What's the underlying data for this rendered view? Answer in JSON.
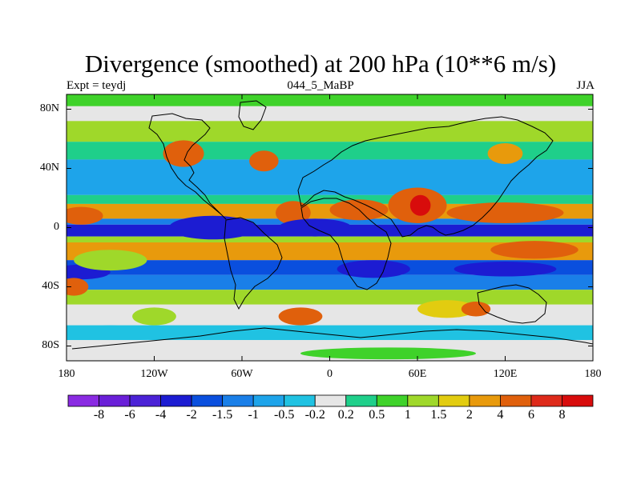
{
  "chart_data": {
    "type": "heatmap",
    "title": "Divergence (smoothed) at 200 hPa (10**6 m/s)",
    "subtitle_left": "Expt = teydj",
    "subtitle_center": "044_5_MaBP",
    "subtitle_right": "JJA",
    "xlabel": "",
    "ylabel": "",
    "xlim": [
      -180,
      180
    ],
    "ylim": [
      -90,
      90
    ],
    "x_ticks": [
      {
        "value": -180,
        "label": "180"
      },
      {
        "value": -120,
        "label": "120W"
      },
      {
        "value": -60,
        "label": "60W"
      },
      {
        "value": 0,
        "label": "0"
      },
      {
        "value": 60,
        "label": "60E"
      },
      {
        "value": 120,
        "label": "120E"
      },
      {
        "value": 180,
        "label": "180"
      }
    ],
    "y_ticks": [
      {
        "value": 80,
        "label": "80N"
      },
      {
        "value": 40,
        "label": "40N"
      },
      {
        "value": 0,
        "label": "0"
      },
      {
        "value": -40,
        "label": "40S"
      },
      {
        "value": -80,
        "label": "80S"
      }
    ],
    "colorbar": {
      "labels": [
        "-8",
        "-6",
        "-4",
        "-2",
        "-1.5",
        "-1",
        "-0.5",
        "-0.2",
        "0.2",
        "0.5",
        "1",
        "1.5",
        "2",
        "4",
        "6",
        "8"
      ],
      "colors": [
        "#8a2be2",
        "#6a1fd8",
        "#4b22d6",
        "#1c1cd2",
        "#0a4fde",
        "#1a7fe8",
        "#1ea4ea",
        "#20c2e2",
        "#e6e6e6",
        "#1fcf8a",
        "#3fd22a",
        "#9fd82a",
        "#e2cc10",
        "#e89a0c",
        "#e0600c",
        "#de2a1a",
        "#d80c0c"
      ]
    },
    "bands": [
      {
        "lat_min": 82,
        "lat_max": 90,
        "value": 0.5
      },
      {
        "lat_min": 72,
        "lat_max": 82,
        "value": 0
      },
      {
        "lat_min": 58,
        "lat_max": 72,
        "value": 1
      },
      {
        "lat_min": 46,
        "lat_max": 58,
        "value": 0.3
      },
      {
        "lat_min": 30,
        "lat_max": 46,
        "value": -0.6
      },
      {
        "lat_min": 22,
        "lat_max": 30,
        "value": -1
      },
      {
        "lat_min": 16,
        "lat_max": 22,
        "value": 0.3
      },
      {
        "lat_min": 6,
        "lat_max": 16,
        "value": 2
      },
      {
        "lat_min": 2,
        "lat_max": 6,
        "value": -1.5
      },
      {
        "lat_min": -6,
        "lat_max": 2,
        "value": -2.5
      },
      {
        "lat_min": -10,
        "lat_max": -6,
        "value": 1
      },
      {
        "lat_min": -22,
        "lat_max": -10,
        "value": 2
      },
      {
        "lat_min": -32,
        "lat_max": -22,
        "value": -1.8
      },
      {
        "lat_min": -42,
        "lat_max": -32,
        "value": -1.2
      },
      {
        "lat_min": -52,
        "lat_max": -42,
        "value": 1.2
      },
      {
        "lat_min": -66,
        "lat_max": -52,
        "value": 0
      },
      {
        "lat_min": -76,
        "lat_max": -66,
        "value": -0.5
      },
      {
        "lat_min": -90,
        "lat_max": -76,
        "value": 0
      }
    ],
    "blobs": [
      {
        "lon": 60,
        "lat": 15,
        "rlon": 20,
        "rlat": 12,
        "value": 4
      },
      {
        "lon": 62,
        "lat": 15,
        "rlon": 7,
        "rlat": 7,
        "value": 8
      },
      {
        "lon": 20,
        "lat": 12,
        "rlon": 20,
        "rlat": 7,
        "value": 4
      },
      {
        "lon": -25,
        "lat": 10,
        "rlon": 12,
        "rlat": 8,
        "value": 4
      },
      {
        "lon": -170,
        "lat": 8,
        "rlon": 15,
        "rlat": 6,
        "value": 4
      },
      {
        "lon": 120,
        "lat": 10,
        "rlon": 40,
        "rlat": 7,
        "value": 4
      },
      {
        "lon": -100,
        "lat": 50,
        "rlon": 14,
        "rlat": 9,
        "value": 4
      },
      {
        "lon": -45,
        "lat": 45,
        "rlon": 10,
        "rlat": 7,
        "value": 4
      },
      {
        "lon": 120,
        "lat": 50,
        "rlon": 12,
        "rlat": 7,
        "value": 2
      },
      {
        "lon": 140,
        "lat": -15,
        "rlon": 30,
        "rlat": 6,
        "value": 4
      },
      {
        "lon": -80,
        "lat": 0,
        "rlon": 30,
        "rlat": 8,
        "value": -4
      },
      {
        "lon": -10,
        "lat": 0,
        "rlon": 25,
        "rlat": 6,
        "value": -4
      },
      {
        "lon": 120,
        "lat": -28,
        "rlon": 35,
        "rlat": 5,
        "value": -4
      },
      {
        "lon": 30,
        "lat": -28,
        "rlon": 25,
        "rlat": 6,
        "value": -4
      },
      {
        "lon": -170,
        "lat": -30,
        "rlon": 20,
        "rlat": 5,
        "value": -4
      },
      {
        "lon": -175,
        "lat": -40,
        "rlon": 10,
        "rlat": 6,
        "value": 4
      },
      {
        "lon": -20,
        "lat": -60,
        "rlon": 15,
        "rlat": 6,
        "value": 4
      },
      {
        "lon": 80,
        "lat": -55,
        "rlon": 20,
        "rlat": 6,
        "value": 1.5
      },
      {
        "lon": 100,
        "lat": -55,
        "rlon": 10,
        "rlat": 5,
        "value": 4
      },
      {
        "lon": -150,
        "lat": -22,
        "rlon": 25,
        "rlat": 7,
        "value": 1.2
      },
      {
        "lon": -120,
        "lat": -60,
        "rlon": 15,
        "rlat": 6,
        "value": 1
      },
      {
        "lon": 40,
        "lat": -85,
        "rlon": 60,
        "rlat": 4,
        "value": 0.6
      },
      {
        "lon": -150,
        "lat": -70,
        "rlon": 15,
        "rlat": 4,
        "value": -0.5
      }
    ]
  }
}
